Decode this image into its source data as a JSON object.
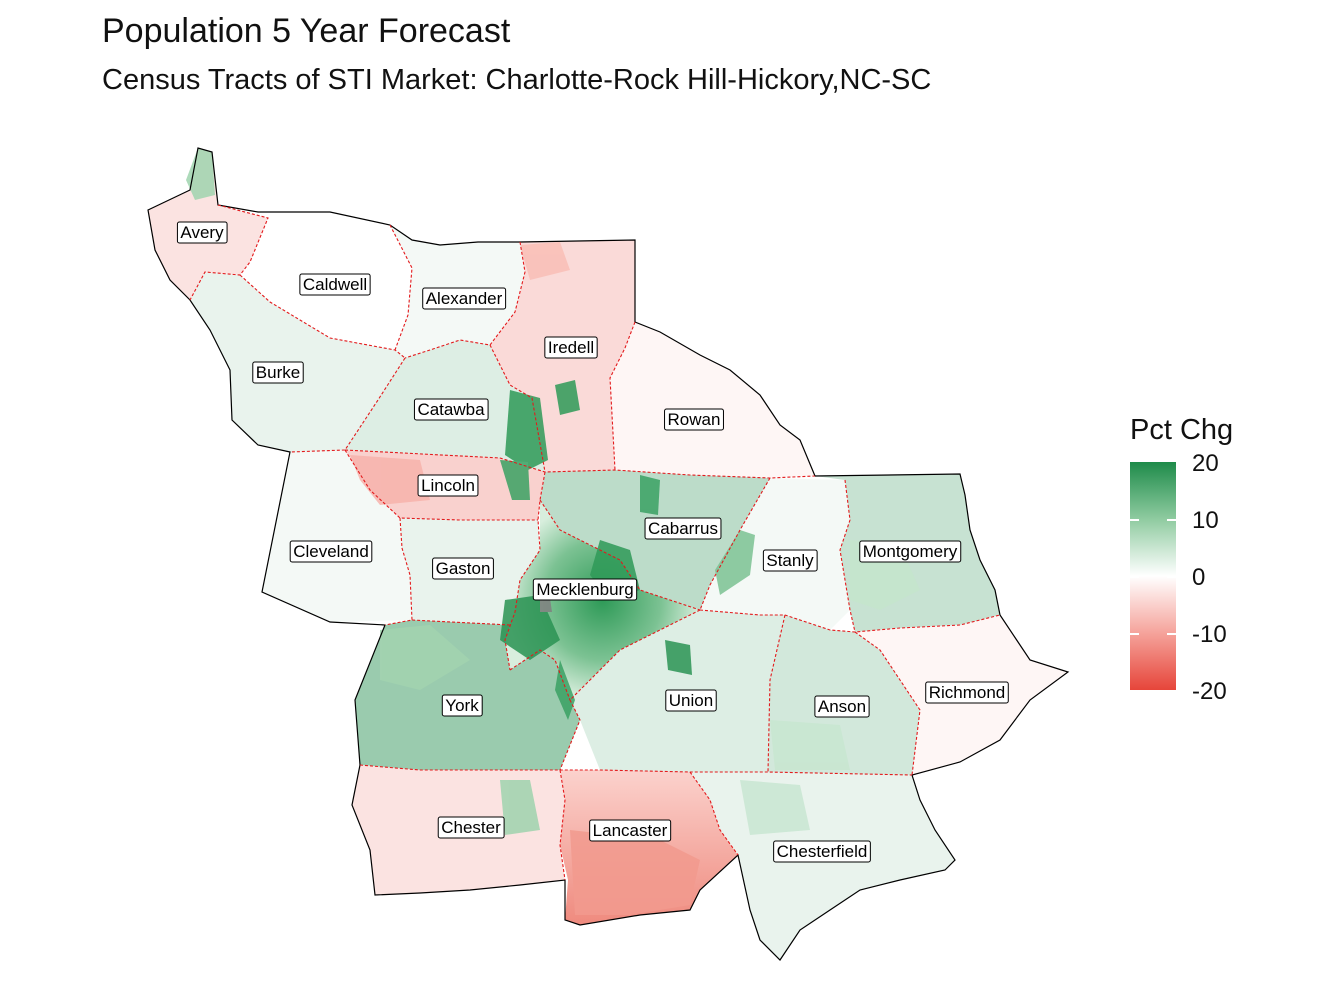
{
  "title": "Population 5 Year Forecast",
  "subtitle": "Census Tracts of STI Market: Charlotte-Rock Hill-Hickory,NC-SC",
  "legend": {
    "title": "Pct Chg",
    "ticks": [
      "20",
      "10",
      "0",
      "-10",
      "-20"
    ],
    "range": [
      -20,
      20
    ],
    "colors": {
      "high": "#1e8b4a",
      "mid": "#ffffff",
      "low": "#e6453a"
    }
  },
  "county_border_color": "#e31a1c",
  "counties": [
    {
      "name": "Avery",
      "pct_chg": -3
    },
    {
      "name": "Caldwell",
      "pct_chg": 0
    },
    {
      "name": "Alexander",
      "pct_chg": 1
    },
    {
      "name": "Iredell",
      "pct_chg": -4
    },
    {
      "name": "Burke",
      "pct_chg": 2
    },
    {
      "name": "Catawba",
      "pct_chg": 3
    },
    {
      "name": "Rowan",
      "pct_chg": -1
    },
    {
      "name": "Lincoln",
      "pct_chg": -5
    },
    {
      "name": "Cabarrus",
      "pct_chg": 6
    },
    {
      "name": "Cleveland",
      "pct_chg": 1
    },
    {
      "name": "Gaston",
      "pct_chg": 2
    },
    {
      "name": "Stanly",
      "pct_chg": 1
    },
    {
      "name": "Montgomery",
      "pct_chg": 5
    },
    {
      "name": "Mecklenburg",
      "pct_chg": 12
    },
    {
      "name": "Richmond",
      "pct_chg": -1
    },
    {
      "name": "York",
      "pct_chg": 9
    },
    {
      "name": "Union",
      "pct_chg": 3
    },
    {
      "name": "Anson",
      "pct_chg": 4
    },
    {
      "name": "Chester",
      "pct_chg": -3
    },
    {
      "name": "Lancaster",
      "pct_chg": -12
    },
    {
      "name": "Chesterfield",
      "pct_chg": 2
    }
  ]
}
